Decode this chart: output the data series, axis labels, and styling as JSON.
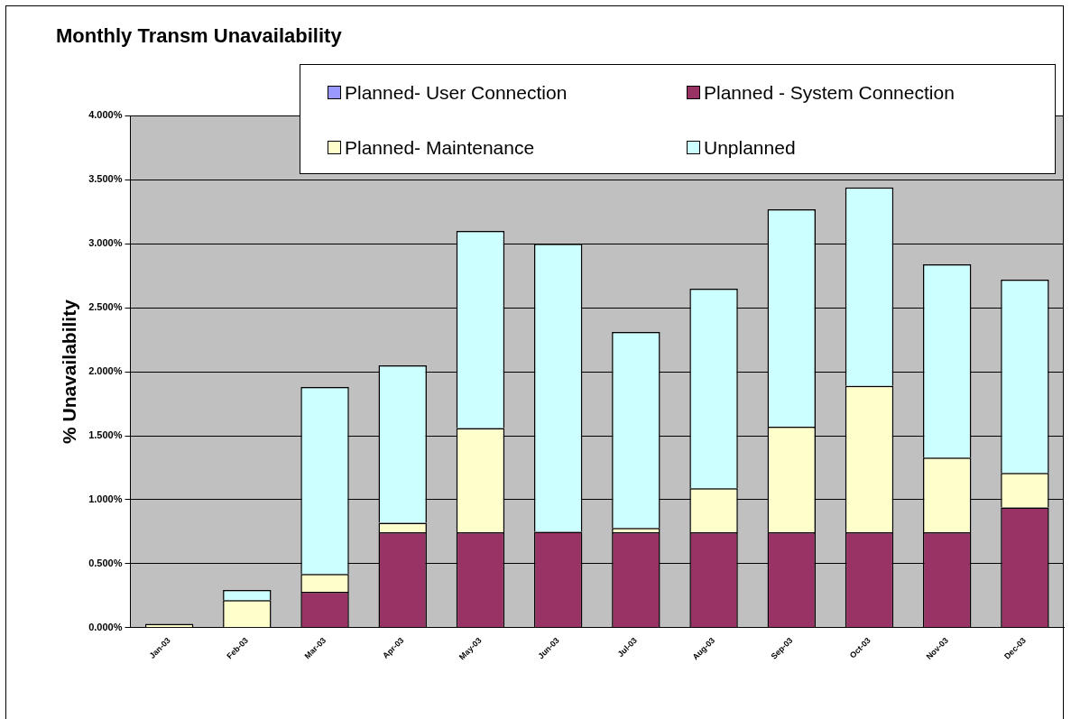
{
  "chart_data": {
    "type": "bar",
    "title": "Monthly Transm Unavailability",
    "ylabel": "% Unavailability",
    "categories": [
      "Jan-03",
      "Feb-03",
      "Mar-03",
      "Apr-03",
      "May-03",
      "Jun-03",
      "Jul-03",
      "Aug-03",
      "Sep-03",
      "Oct-03",
      "Nov-03",
      "Dec-03"
    ],
    "stacked": true,
    "legend": "top right",
    "grid": "y",
    "ylim": [
      0,
      4
    ],
    "yticks": [
      {
        "value": 0,
        "label": "0.000%"
      },
      {
        "value": 0.5,
        "label": "0.500%"
      },
      {
        "value": 1,
        "label": "1.000%"
      },
      {
        "value": 1.5,
        "label": "1.500%"
      },
      {
        "value": 2,
        "label": "2.000%"
      },
      {
        "value": 2.5,
        "label": "2.500%"
      },
      {
        "value": 3,
        "label": "3.000%"
      },
      {
        "value": 3.5,
        "label": "3.500%"
      },
      {
        "value": 4,
        "label": "4.000%"
      }
    ],
    "series": [
      {
        "name": "Planned- User Connection",
        "color": "#9999ff",
        "values": [
          0,
          0,
          0,
          0,
          0,
          0,
          0,
          0,
          0,
          0,
          0,
          0
        ]
      },
      {
        "name": "Planned - System Connection",
        "color": "#993366",
        "values": [
          0,
          0,
          0.28,
          0.745,
          0.745,
          0.75,
          0.745,
          0.745,
          0.745,
          0.745,
          0.745,
          0.94
        ]
      },
      {
        "name": "Planned- Maintenance",
        "color": "#ffffcc",
        "values": [
          0.03,
          0.215,
          0.14,
          0.075,
          0.815,
          null,
          0.035,
          0.345,
          0.825,
          1.145,
          0.585,
          0.27
        ]
      },
      {
        "name": "Unplanned",
        "color": "#ccffff",
        "values": [
          0,
          0.08,
          1.46,
          1.23,
          1.54,
          2.25,
          1.53,
          1.56,
          1.7,
          1.55,
          1.51,
          1.51
        ]
      }
    ]
  }
}
